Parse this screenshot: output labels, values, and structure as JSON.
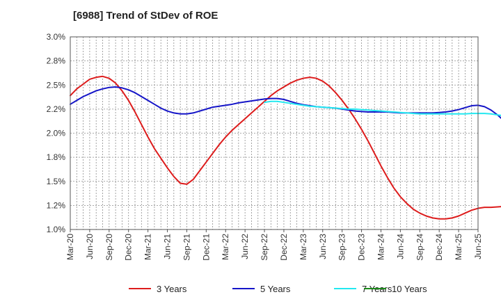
{
  "chart_data": {
    "type": "line",
    "title": "[6988]  Trend of StDev of ROE",
    "xlabel": "",
    "ylabel": "",
    "ylim": [
      1.0,
      3.0
    ],
    "y_ticks": [
      "1.0%",
      "1.2%",
      "1.5%",
      "1.8%",
      "2.0%",
      "2.2%",
      "2.5%",
      "2.8%",
      "3.0%"
    ],
    "x_ticks": [
      "Mar-20",
      "Jun-20",
      "Sep-20",
      "Dec-20",
      "Mar-21",
      "Jun-21",
      "Sep-21",
      "Dec-21",
      "Mar-22",
      "Jun-22",
      "Sep-22",
      "Dec-22",
      "Mar-23",
      "Jun-23",
      "Sep-23",
      "Dec-23",
      "Mar-24",
      "Jun-24",
      "Sep-24",
      "Dec-24",
      "Mar-25",
      "Jun-25"
    ],
    "grid": true,
    "legend_position": "bottom",
    "series": [
      {
        "name": "3 Years",
        "color": "#dd1c1c",
        "start_index": 0,
        "values": [
          2.39,
          2.46,
          2.51,
          2.56,
          2.58,
          2.59,
          2.57,
          2.52,
          2.44,
          2.34,
          2.22,
          2.09,
          1.96,
          1.84,
          1.74,
          1.64,
          1.55,
          1.48,
          1.47,
          1.52,
          1.61,
          1.7,
          1.79,
          1.88,
          1.96,
          2.03,
          2.09,
          2.15,
          2.21,
          2.27,
          2.33,
          2.39,
          2.44,
          2.48,
          2.52,
          2.55,
          2.57,
          2.58,
          2.57,
          2.54,
          2.49,
          2.42,
          2.34,
          2.25,
          2.15,
          2.04,
          1.92,
          1.79,
          1.66,
          1.54,
          1.43,
          1.34,
          1.27,
          1.21,
          1.17,
          1.14,
          1.12,
          1.11,
          1.11,
          1.12,
          1.14,
          1.17,
          1.2,
          1.22,
          1.23,
          1.23,
          1.235,
          1.24,
          1.25,
          1.26
        ]
      },
      {
        "name": "5 Years",
        "color": "#1515c8",
        "start_index": 0,
        "values": [
          2.3,
          2.34,
          2.38,
          2.41,
          2.44,
          2.46,
          2.475,
          2.48,
          2.47,
          2.45,
          2.42,
          2.38,
          2.34,
          2.3,
          2.26,
          2.23,
          2.21,
          2.2,
          2.2,
          2.21,
          2.23,
          2.25,
          2.27,
          2.28,
          2.29,
          2.3,
          2.315,
          2.325,
          2.335,
          2.345,
          2.355,
          2.36,
          2.36,
          2.35,
          2.33,
          2.31,
          2.295,
          2.285,
          2.275,
          2.27,
          2.265,
          2.26,
          2.25,
          2.24,
          2.23,
          2.225,
          2.22,
          2.22,
          2.22,
          2.22,
          2.215,
          2.21,
          2.21,
          2.21,
          2.21,
          2.21,
          2.21,
          2.215,
          2.22,
          2.23,
          2.245,
          2.265,
          2.285,
          2.29,
          2.275,
          2.24,
          2.19,
          2.13,
          2.07
        ]
      },
      {
        "name": "7 Years",
        "color": "#22e8f0",
        "start_index": 30,
        "values": [
          2.32,
          2.33,
          2.33,
          2.32,
          2.31,
          2.3,
          2.29,
          2.28,
          2.275,
          2.27,
          2.265,
          2.26,
          2.255,
          2.25,
          2.25,
          2.245,
          2.24,
          2.235,
          2.23,
          2.225,
          2.22,
          2.215,
          2.21,
          2.205,
          2.2,
          2.2,
          2.2,
          2.2,
          2.2,
          2.2,
          2.2,
          2.2,
          2.205,
          2.205,
          2.205,
          2.2,
          2.19,
          2.18,
          2.17,
          2.17
        ]
      },
      {
        "name": "10 Years",
        "color": "#1a8a1a",
        "start_index": 0,
        "values": []
      }
    ]
  }
}
